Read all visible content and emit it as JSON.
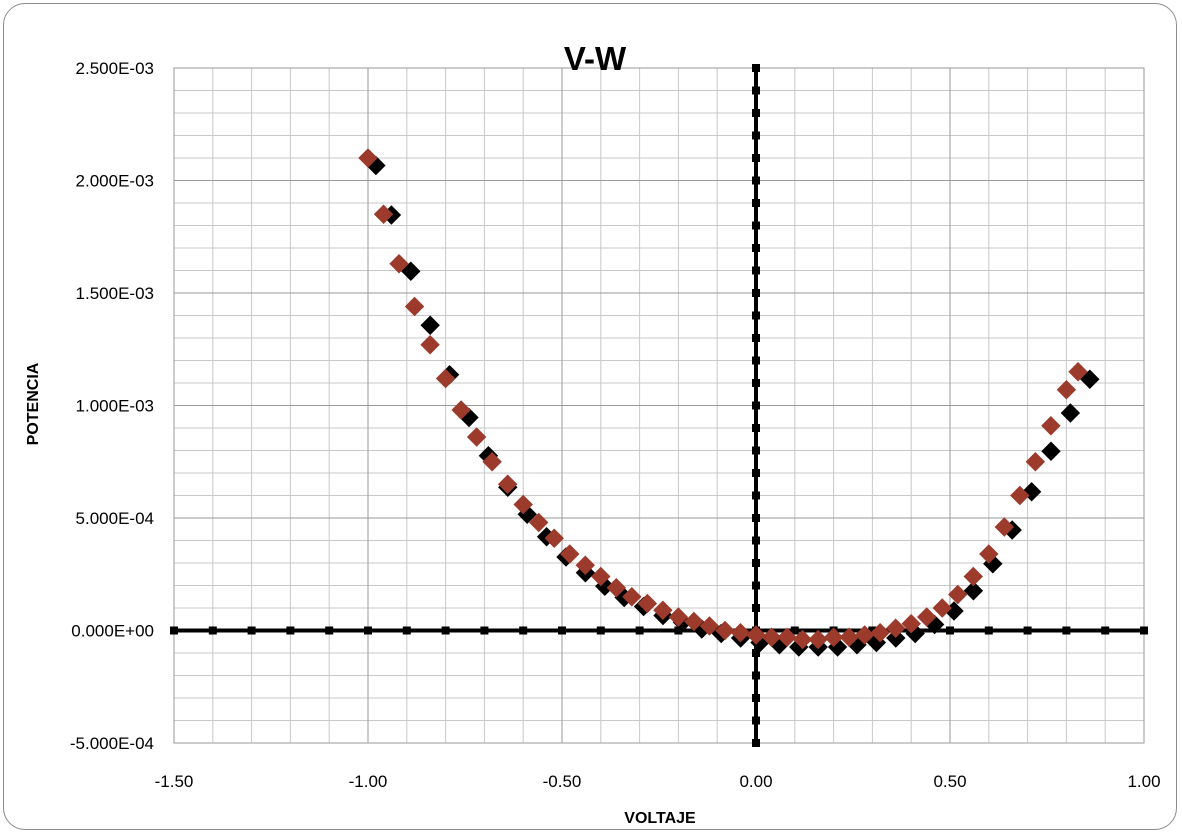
{
  "chart_data": {
    "type": "scatter",
    "title": "V-W",
    "xlabel": "VOLTAJE",
    "ylabel": "POTENCIA",
    "xlim": [
      -1.5,
      1.0
    ],
    "ylim": [
      -0.0005,
      0.0025
    ],
    "x_ticks": [
      -1.5,
      -1.0,
      -0.5,
      0.0,
      0.5,
      1.0
    ],
    "x_tick_labels": [
      "-1.50",
      "-1.00",
      "-0.50",
      "0.00",
      "0.50",
      "1.00"
    ],
    "y_ticks": [
      -0.0005,
      0.0,
      0.0005,
      0.001,
      0.0015,
      0.002,
      0.0025
    ],
    "y_tick_labels": [
      "-5.000E-04",
      "0.000E+00",
      "5.000E-04",
      "1.000E-03",
      "1.500E-03",
      "2.000E-03",
      "2.500E-03"
    ],
    "minor_grid": {
      "x_step": 0.1,
      "y_step": 0.0001
    },
    "grid": true,
    "legend": "none",
    "series": [
      {
        "marker": "diamond",
        "color": "#000000",
        "x": [
          -0.99,
          -0.95,
          -0.9,
          -0.85,
          -0.8,
          -0.75,
          -0.7,
          -0.65,
          -0.6,
          -0.55,
          -0.5,
          -0.45,
          -0.4,
          -0.35,
          -0.3,
          -0.25,
          -0.2,
          -0.15,
          -0.1,
          -0.05,
          0.0,
          0.05,
          0.1,
          0.15,
          0.2,
          0.25,
          0.3,
          0.35,
          0.4,
          0.45,
          0.5,
          0.55,
          0.6,
          0.65,
          0.7,
          0.75,
          0.8,
          0.85
        ],
        "y": [
          0.00208,
          0.00186,
          0.00161,
          0.00137,
          0.00115,
          0.00096,
          0.00079,
          0.00065,
          0.00053,
          0.00043,
          0.00034,
          0.00027,
          0.00021,
          0.00016,
          0.00012,
          8e-05,
          5e-05,
          2e-05,
          0.0,
          -2e-05,
          -4e-05,
          -5e-05,
          -6e-05,
          -6e-05,
          -6e-05,
          -5e-05,
          -4e-05,
          -2e-05,
          0.0,
          4e-05,
          0.0001,
          0.00019,
          0.00031,
          0.00046,
          0.00063,
          0.00081,
          0.00098,
          0.00113
        ]
      },
      {
        "marker": "diamond",
        "color": "#9c3a2b",
        "x": [
          -1.0,
          -0.96,
          -0.92,
          -0.88,
          -0.84,
          -0.8,
          -0.76,
          -0.72,
          -0.68,
          -0.64,
          -0.6,
          -0.56,
          -0.52,
          -0.48,
          -0.44,
          -0.4,
          -0.36,
          -0.32,
          -0.28,
          -0.24,
          -0.2,
          -0.16,
          -0.12,
          -0.08,
          -0.04,
          0.0,
          0.04,
          0.08,
          0.12,
          0.16,
          0.2,
          0.24,
          0.28,
          0.32,
          0.36,
          0.4,
          0.44,
          0.48,
          0.52,
          0.56,
          0.6,
          0.64,
          0.68,
          0.72,
          0.76,
          0.8,
          0.83
        ],
        "y": [
          0.0021,
          0.00185,
          0.00163,
          0.00144,
          0.00127,
          0.00112,
          0.00098,
          0.00086,
          0.00075,
          0.00065,
          0.00056,
          0.00048,
          0.00041,
          0.00034,
          0.00029,
          0.00024,
          0.00019,
          0.00015,
          0.00012,
          9e-05,
          6e-05,
          4e-05,
          2e-05,
          0.0,
          -1e-05,
          -2e-05,
          -3e-05,
          -3e-05,
          -4e-05,
          -4e-05,
          -3e-05,
          -3e-05,
          -2e-05,
          -1e-05,
          1e-05,
          3e-05,
          6e-05,
          0.0001,
          0.00016,
          0.00024,
          0.00034,
          0.00046,
          0.0006,
          0.00075,
          0.00091,
          0.00107,
          0.00115
        ]
      }
    ]
  }
}
